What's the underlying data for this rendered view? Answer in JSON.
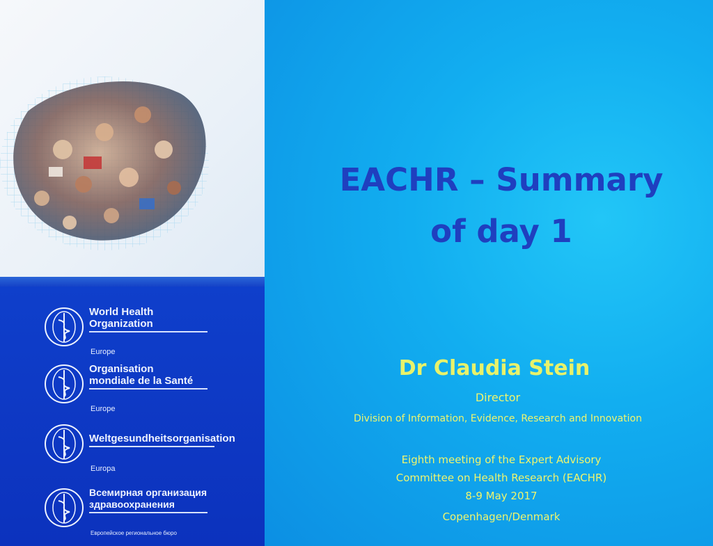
{
  "slide": {
    "title_line1": "EACHR – Summary",
    "title_line2": "of day 1",
    "presenter": "Dr Claudia Stein",
    "role": "Director",
    "division": "Division of Information, Evidence, Research and Innovation",
    "meeting_line1": "Eighth meeting of the Expert Advisory",
    "meeting_line2": "Committee on Health Research (EACHR)",
    "dates": "8-9 May 2017",
    "location": "Copenhagen/Denmark"
  },
  "logos": [
    {
      "name_line1": "World Health",
      "name_line2": "Organization",
      "region": "Europe"
    },
    {
      "name_line1": "Organisation",
      "name_line2": "mondiale de la Santé",
      "region": "Europe"
    },
    {
      "name_line1": "Weltgesundheitsorganisation",
      "name_line2": "",
      "region": "Europa"
    },
    {
      "name_line1": "Всемирная организация",
      "name_line2": "здравоохранения",
      "region": "Европейское региональное бюро"
    }
  ],
  "colors": {
    "title": "#1f3fbf",
    "subtitle_text": "#eef56e",
    "left_panel": "#0c32bd",
    "right_panel": "#12aef0"
  }
}
